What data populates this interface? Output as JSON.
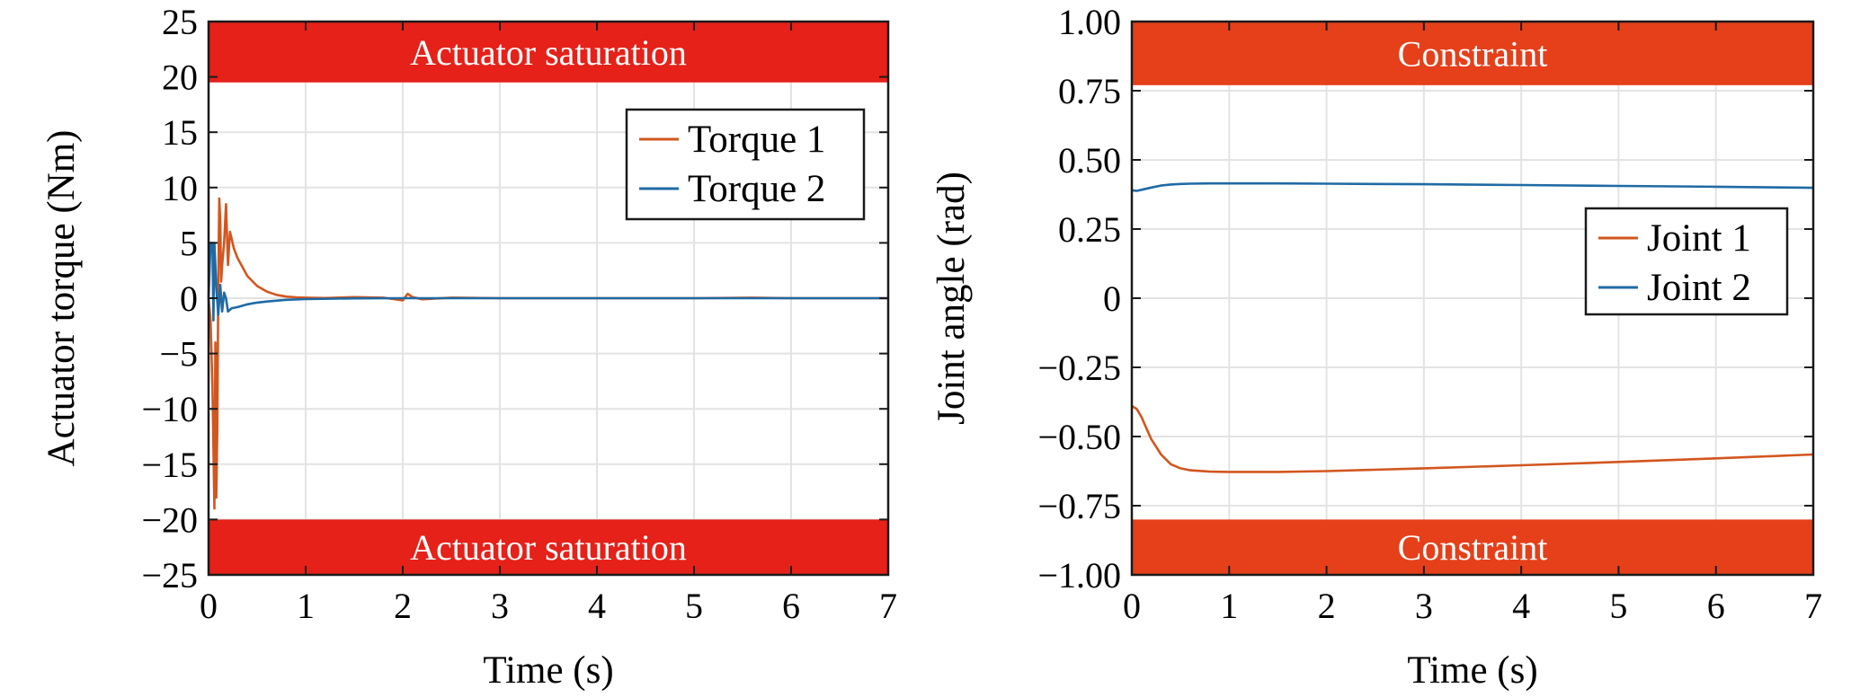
{
  "chart_data": [
    {
      "type": "line",
      "xlabel": "Time (s)",
      "ylabel": "Actuator torque (Nm)",
      "xlim": [
        0,
        7
      ],
      "ylim": [
        -25,
        25
      ],
      "xticks": [
        "0",
        "1",
        "2",
        "3",
        "4",
        "5",
        "6",
        "7"
      ],
      "xtick_values": [
        0,
        1,
        2,
        3,
        4,
        5,
        6,
        7
      ],
      "yticks": [
        "25",
        "20",
        "15",
        "10",
        "5",
        "0",
        "−5",
        "−10",
        "−15",
        "−20",
        "−25"
      ],
      "ytick_values": [
        25,
        20,
        15,
        10,
        5,
        0,
        -5,
        -10,
        -15,
        -20,
        -25
      ],
      "grid": true,
      "legend_position": "top-right",
      "bands": [
        {
          "label": "Actuator saturation",
          "y0": 19.5,
          "y1": 25,
          "color": "#e52119"
        },
        {
          "label": "Actuator saturation",
          "y0": -25,
          "y1": -20,
          "color": "#e52119"
        }
      ],
      "series": [
        {
          "name": "Torque 1",
          "color": "#d2561f",
          "x": [
            0,
            0.02,
            0.04,
            0.06,
            0.07,
            0.08,
            0.09,
            0.1,
            0.11,
            0.12,
            0.13,
            0.14,
            0.16,
            0.18,
            0.2,
            0.22,
            0.24,
            0.26,
            0.3,
            0.35,
            0.4,
            0.5,
            0.6,
            0.7,
            0.8,
            0.9,
            1.0,
            1.2,
            1.5,
            1.8,
            2.0,
            2.05,
            2.1,
            2.2,
            2.5,
            3,
            4,
            5,
            5.6,
            6,
            7
          ],
          "y": [
            0,
            -2,
            -8,
            -19,
            -4,
            -18,
            -12,
            1,
            9,
            7,
            1.5,
            3,
            5,
            8.5,
            3,
            6,
            5.3,
            4.5,
            3.6,
            2.8,
            2.0,
            1.1,
            0.6,
            0.3,
            0.15,
            0.08,
            0.05,
            0.02,
            0.1,
            0.05,
            -0.2,
            0.4,
            0.1,
            -0.1,
            0.05,
            0,
            0,
            0,
            0.05,
            0,
            0
          ]
        },
        {
          "name": "Torque 2",
          "color": "#1f6aa5",
          "x": [
            0,
            0.02,
            0.04,
            0.05,
            0.06,
            0.08,
            0.1,
            0.12,
            0.14,
            0.16,
            0.18,
            0.2,
            0.24,
            0.3,
            0.4,
            0.5,
            0.6,
            0.8,
            1.0,
            1.5,
            2,
            3,
            4,
            5,
            6,
            7
          ],
          "y": [
            0,
            5,
            5,
            -2,
            5,
            1,
            -1.5,
            1.2,
            -1.2,
            0.5,
            0,
            -1.2,
            -0.9,
            -0.8,
            -0.55,
            -0.4,
            -0.3,
            -0.15,
            -0.08,
            -0.02,
            0,
            0,
            0,
            0,
            0,
            0
          ]
        }
      ]
    },
    {
      "type": "line",
      "xlabel": "Time (s)",
      "ylabel": "Joint angle (rad)",
      "xlim": [
        0,
        7
      ],
      "ylim": [
        -1.0,
        1.0
      ],
      "xticks": [
        "0",
        "1",
        "2",
        "3",
        "4",
        "5",
        "6",
        "7"
      ],
      "xtick_values": [
        0,
        1,
        2,
        3,
        4,
        5,
        6,
        7
      ],
      "yticks": [
        "1.00",
        "0.75",
        "0.50",
        "0.25",
        "0",
        "−0.25",
        "−0.50",
        "−0.75",
        "−1.00"
      ],
      "ytick_values": [
        1.0,
        0.75,
        0.5,
        0.25,
        0,
        -0.25,
        -0.5,
        -0.75,
        -1.0
      ],
      "grid": true,
      "legend_position": "center-right",
      "bands": [
        {
          "label": "Constraint",
          "y0": 0.77,
          "y1": 1.0,
          "color": "#e5401a"
        },
        {
          "label": "Constraint",
          "y0": -1.0,
          "y1": -0.8,
          "color": "#e5401a"
        }
      ],
      "series": [
        {
          "name": "Joint 1",
          "color": "#d2561f",
          "x": [
            0,
            0.05,
            0.1,
            0.15,
            0.2,
            0.3,
            0.4,
            0.5,
            0.6,
            0.8,
            1.0,
            1.2,
            1.5,
            2,
            3,
            4,
            5,
            6,
            7
          ],
          "y": [
            -0.39,
            -0.4,
            -0.43,
            -0.47,
            -0.51,
            -0.565,
            -0.6,
            -0.615,
            -0.622,
            -0.627,
            -0.628,
            -0.628,
            -0.628,
            -0.625,
            -0.615,
            -0.604,
            -0.592,
            -0.579,
            -0.565
          ]
        },
        {
          "name": "Joint 2",
          "color": "#1f6aa5",
          "x": [
            0,
            0.05,
            0.1,
            0.2,
            0.3,
            0.4,
            0.5,
            0.6,
            0.8,
            1.0,
            1.5,
            2,
            3,
            4,
            5,
            6,
            7
          ],
          "y": [
            0.39,
            0.388,
            0.392,
            0.4,
            0.407,
            0.411,
            0.413,
            0.414,
            0.415,
            0.415,
            0.415,
            0.414,
            0.412,
            0.409,
            0.406,
            0.403,
            0.399
          ]
        }
      ]
    }
  ]
}
